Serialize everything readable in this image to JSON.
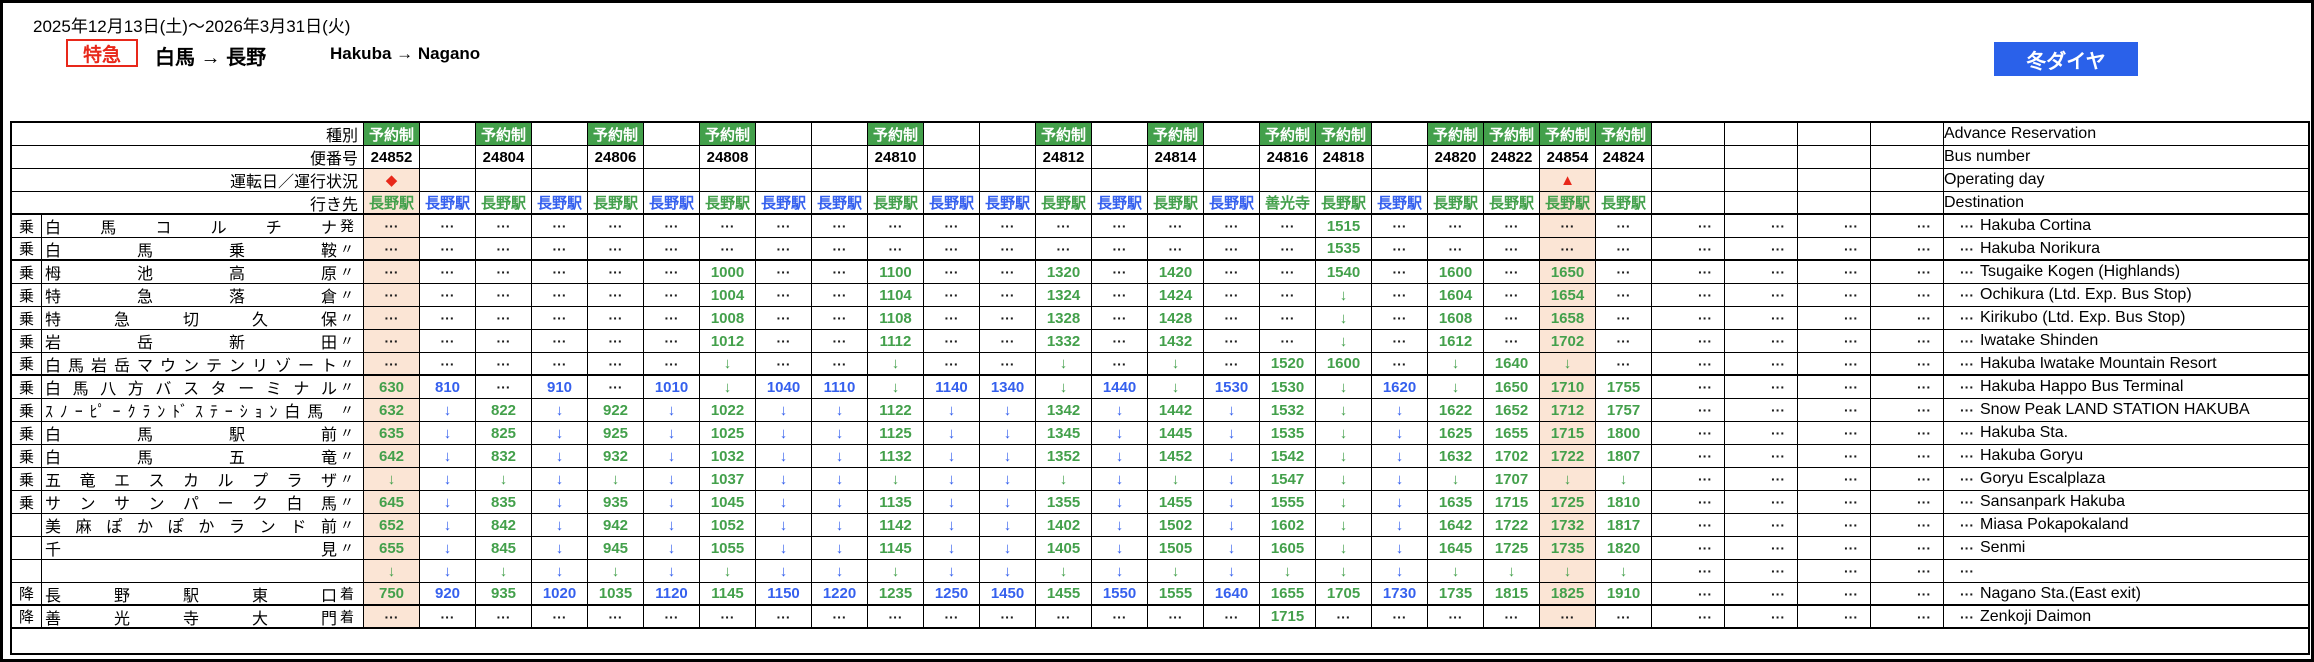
{
  "page": {
    "date_range": "2025年12月13日(土)～2026年3月31日(火)",
    "express_badge": "特急",
    "route_jp": "白馬 → 長野",
    "route_en": "Hakuba → Nagano",
    "season_badge": "冬ダイヤ"
  },
  "colors": {
    "green": "#43a04b",
    "blue": "#3560ee",
    "red": "#e8281a",
    "highlight_peach": "#fbe5d5",
    "badge_blue": "#2a61ea"
  },
  "glyphs": {
    "pass_arrow": "↓",
    "no_service": "···"
  },
  "timetable": {
    "reserved_label": "予約制",
    "header_rows": [
      {
        "key": "type",
        "label_jp": "種別",
        "label_en": "Advance Reservation"
      },
      {
        "key": "bus_number",
        "label_jp": "便番号",
        "label_en": "Bus number"
      },
      {
        "key": "operating_day",
        "label_jp": "運転日／運行状況",
        "label_en": "Operating day"
      },
      {
        "key": "destination",
        "label_jp": "行き先",
        "label_en": "Destination"
      }
    ],
    "columns": [
      {
        "bus_number": "24852",
        "reserved": true,
        "operating_mark": "◆",
        "destination": "長野駅",
        "highlight": true
      },
      {
        "bus_number": "",
        "reserved": false,
        "operating_mark": "",
        "destination": "長野駅",
        "highlight": false
      },
      {
        "bus_number": "24804",
        "reserved": true,
        "operating_mark": "",
        "destination": "長野駅",
        "highlight": false
      },
      {
        "bus_number": "",
        "reserved": false,
        "operating_mark": "",
        "destination": "長野駅",
        "highlight": false
      },
      {
        "bus_number": "24806",
        "reserved": true,
        "operating_mark": "",
        "destination": "長野駅",
        "highlight": false
      },
      {
        "bus_number": "",
        "reserved": false,
        "operating_mark": "",
        "destination": "長野駅",
        "highlight": false
      },
      {
        "bus_number": "24808",
        "reserved": true,
        "operating_mark": "",
        "destination": "長野駅",
        "highlight": false
      },
      {
        "bus_number": "",
        "reserved": false,
        "operating_mark": "",
        "destination": "長野駅",
        "highlight": false
      },
      {
        "bus_number": "",
        "reserved": false,
        "operating_mark": "",
        "destination": "長野駅",
        "highlight": false
      },
      {
        "bus_number": "24810",
        "reserved": true,
        "operating_mark": "",
        "destination": "長野駅",
        "highlight": false
      },
      {
        "bus_number": "",
        "reserved": false,
        "operating_mark": "",
        "destination": "長野駅",
        "highlight": false
      },
      {
        "bus_number": "",
        "reserved": false,
        "operating_mark": "",
        "destination": "長野駅",
        "highlight": false
      },
      {
        "bus_number": "24812",
        "reserved": true,
        "operating_mark": "",
        "destination": "長野駅",
        "highlight": false
      },
      {
        "bus_number": "",
        "reserved": false,
        "operating_mark": "",
        "destination": "長野駅",
        "highlight": false
      },
      {
        "bus_number": "24814",
        "reserved": true,
        "operating_mark": "",
        "destination": "長野駅",
        "highlight": false
      },
      {
        "bus_number": "",
        "reserved": false,
        "operating_mark": "",
        "destination": "長野駅",
        "highlight": false
      },
      {
        "bus_number": "24816",
        "reserved": true,
        "operating_mark": "",
        "destination": "善光寺",
        "highlight": false
      },
      {
        "bus_number": "24818",
        "reserved": true,
        "operating_mark": "",
        "destination": "長野駅",
        "highlight": false
      },
      {
        "bus_number": "",
        "reserved": false,
        "operating_mark": "",
        "destination": "長野駅",
        "highlight": false
      },
      {
        "bus_number": "24820",
        "reserved": true,
        "operating_mark": "",
        "destination": "長野駅",
        "highlight": false
      },
      {
        "bus_number": "24822",
        "reserved": true,
        "operating_mark": "",
        "destination": "長野駅",
        "highlight": false
      },
      {
        "bus_number": "24854",
        "reserved": true,
        "operating_mark": "▲",
        "destination": "長野駅",
        "highlight": true
      },
      {
        "bus_number": "24824",
        "reserved": true,
        "operating_mark": "",
        "destination": "長野駅",
        "highlight": false
      }
    ],
    "trailing_dot_columns": 4,
    "stations": [
      {
        "marker": "乗",
        "name_jp": "白馬コルチナ",
        "suffix": "発",
        "name_en": "Hakuba Cortina",
        "cells": [
          "...",
          "...",
          "...",
          "...",
          "...",
          "...",
          "...",
          "...",
          "...",
          "...",
          "...",
          "...",
          "...",
          "...",
          "...",
          "...",
          "...",
          "1515",
          "...",
          "...",
          "...",
          "...",
          "..."
        ]
      },
      {
        "marker": "乗",
        "name_jp": "白馬乗鞍",
        "suffix": "〃",
        "name_en": "Hakuba Norikura",
        "cells": [
          "...",
          "...",
          "...",
          "...",
          "...",
          "...",
          "...",
          "...",
          "...",
          "...",
          "...",
          "...",
          "...",
          "...",
          "...",
          "...",
          "...",
          "1535",
          "...",
          "...",
          "...",
          "...",
          "..."
        ]
      },
      {
        "marker": "乗",
        "name_jp": "栂池高原",
        "suffix": "〃",
        "name_en": "Tsugaike Kogen (Highlands)",
        "cells": [
          "...",
          "...",
          "...",
          "...",
          "...",
          "...",
          "1000",
          "...",
          "...",
          "1100",
          "...",
          "...",
          "1320",
          "...",
          "1420",
          "...",
          "...",
          "1540",
          "...",
          "1600",
          "...",
          "1650",
          "..."
        ]
      },
      {
        "marker": "乗",
        "name_jp": "特急落倉",
        "suffix": "〃",
        "name_en": "Ochikura (Ltd. Exp. Bus Stop)",
        "cells": [
          "...",
          "...",
          "...",
          "...",
          "...",
          "...",
          "1004",
          "...",
          "...",
          "1104",
          "...",
          "...",
          "1324",
          "...",
          "1424",
          "...",
          "...",
          "v",
          "...",
          "1604",
          "...",
          "1654",
          "..."
        ]
      },
      {
        "marker": "乗",
        "name_jp": "特急切久保",
        "suffix": "〃",
        "name_en": "Kirikubo (Ltd. Exp. Bus Stop)",
        "cells": [
          "...",
          "...",
          "...",
          "...",
          "...",
          "...",
          "1008",
          "...",
          "...",
          "1108",
          "...",
          "...",
          "1328",
          "...",
          "1428",
          "...",
          "...",
          "v",
          "...",
          "1608",
          "...",
          "1658",
          "..."
        ]
      },
      {
        "marker": "乗",
        "name_jp": "岩岳新田",
        "suffix": "〃",
        "name_en": "Iwatake Shinden",
        "cells": [
          "...",
          "...",
          "...",
          "...",
          "...",
          "...",
          "1012",
          "...",
          "...",
          "1112",
          "...",
          "...",
          "1332",
          "...",
          "1432",
          "...",
          "...",
          "v",
          "...",
          "1612",
          "...",
          "1702",
          "..."
        ]
      },
      {
        "marker": "乗",
        "name_jp": "白馬岩岳マウンテンリゾート",
        "suffix": "〃",
        "name_en": "Hakuba Iwatake Mountain Resort",
        "cells": [
          "...",
          "...",
          "...",
          "...",
          "...",
          "...",
          "v",
          "...",
          "...",
          "v",
          "...",
          "...",
          "v",
          "...",
          "v",
          "...",
          "1520",
          "1600",
          "...",
          "v",
          "1640",
          "v",
          "..."
        ]
      },
      {
        "marker": "乗",
        "name_jp": "白馬八方バスターミナル",
        "suffix": "〃",
        "name_en": "Hakuba Happo Bus Terminal",
        "cells": [
          "630",
          "810",
          "...",
          "910",
          "...",
          "1010",
          "v",
          "1040",
          "1110",
          "v",
          "1140",
          "1340",
          "v",
          "1440",
          "v",
          "1530",
          "1530",
          "v",
          "1620",
          "v",
          "1650",
          "1710",
          "1755"
        ]
      },
      {
        "marker": "乗",
        "name_jp": "ｽﾉｰﾋﾟｰｸﾗﾝﾄﾞｽﾃｰｼｮﾝ白馬",
        "suffix": "〃",
        "name_en": "Snow Peak LAND STATION HAKUBA",
        "cells": [
          "632",
          "v",
          "822",
          "v",
          "922",
          "v",
          "1022",
          "v",
          "v",
          "1122",
          "v",
          "v",
          "1342",
          "v",
          "1442",
          "v",
          "1532",
          "v",
          "v",
          "1622",
          "1652",
          "1712",
          "1757"
        ]
      },
      {
        "marker": "乗",
        "name_jp": "白馬駅前",
        "suffix": "〃",
        "name_en": "Hakuba Sta.",
        "cells": [
          "635",
          "v",
          "825",
          "v",
          "925",
          "v",
          "1025",
          "v",
          "v",
          "1125",
          "v",
          "v",
          "1345",
          "v",
          "1445",
          "v",
          "1535",
          "v",
          "v",
          "1625",
          "1655",
          "1715",
          "1800"
        ]
      },
      {
        "marker": "乗",
        "name_jp": "白馬五竜",
        "suffix": "〃",
        "name_en": "Hakuba Goryu",
        "cells": [
          "642",
          "v",
          "832",
          "v",
          "932",
          "v",
          "1032",
          "v",
          "v",
          "1132",
          "v",
          "v",
          "1352",
          "v",
          "1452",
          "v",
          "1542",
          "v",
          "v",
          "1632",
          "1702",
          "1722",
          "1807"
        ]
      },
      {
        "marker": "乗",
        "name_jp": "五竜エスカルプラザ",
        "suffix": "〃",
        "name_en": "Goryu Escalplaza",
        "cells": [
          "v",
          "v",
          "v",
          "v",
          "v",
          "v",
          "1037",
          "v",
          "v",
          "v",
          "v",
          "v",
          "v",
          "v",
          "v",
          "v",
          "1547",
          "v",
          "v",
          "v",
          "1707",
          "v",
          "v"
        ]
      },
      {
        "marker": "乗",
        "name_jp": "サンサンパーク白馬",
        "suffix": "〃",
        "name_en": "Sansanpark Hakuba",
        "cells": [
          "645",
          "v",
          "835",
          "v",
          "935",
          "v",
          "1045",
          "v",
          "v",
          "1135",
          "v",
          "v",
          "1355",
          "v",
          "1455",
          "v",
          "1555",
          "v",
          "v",
          "1635",
          "1715",
          "1725",
          "1810"
        ]
      },
      {
        "marker": "",
        "name_jp": "美麻ぽかぽかランド前",
        "suffix": "〃",
        "name_en": "Miasa Pokapokaland",
        "cells": [
          "652",
          "v",
          "842",
          "v",
          "942",
          "v",
          "1052",
          "v",
          "v",
          "1142",
          "v",
          "v",
          "1402",
          "v",
          "1502",
          "v",
          "1602",
          "v",
          "v",
          "1642",
          "1722",
          "1732",
          "1817"
        ]
      },
      {
        "marker": "",
        "name_jp": "千見",
        "suffix": "〃",
        "name_en": "Senmi",
        "cells": [
          "655",
          "v",
          "845",
          "v",
          "945",
          "v",
          "1055",
          "v",
          "v",
          "1145",
          "v",
          "v",
          "1405",
          "v",
          "1505",
          "v",
          "1605",
          "v",
          "v",
          "1645",
          "1725",
          "1735",
          "1820"
        ]
      },
      {
        "marker": "",
        "name_jp": "",
        "suffix": "",
        "name_en": "",
        "cells": [
          "v",
          "v",
          "v",
          "v",
          "v",
          "v",
          "v",
          "v",
          "v",
          "v",
          "v",
          "v",
          "v",
          "v",
          "v",
          "v",
          "v",
          "v",
          "v",
          "v",
          "v",
          "v",
          "v"
        ]
      },
      {
        "marker": "降",
        "name_jp": "長野駅東口",
        "suffix": "着",
        "name_en": "Nagano Sta.(East exit)",
        "cells": [
          "750",
          "920",
          "935",
          "1020",
          "1035",
          "1120",
          "1145",
          "1150",
          "1220",
          "1235",
          "1250",
          "1450",
          "1455",
          "1550",
          "1555",
          "1640",
          "1655",
          "1705",
          "1730",
          "1735",
          "1815",
          "1825",
          "1910"
        ]
      },
      {
        "marker": "降",
        "name_jp": "善光寺大門",
        "suffix": "着",
        "name_en": "Zenkoji Daimon",
        "cells": [
          "...",
          "...",
          "...",
          "...",
          "...",
          "...",
          "...",
          "...",
          "...",
          "...",
          "...",
          "...",
          "...",
          "...",
          "...",
          "...",
          "1715",
          "...",
          "...",
          "...",
          "...",
          "...",
          "..."
        ]
      }
    ]
  }
}
